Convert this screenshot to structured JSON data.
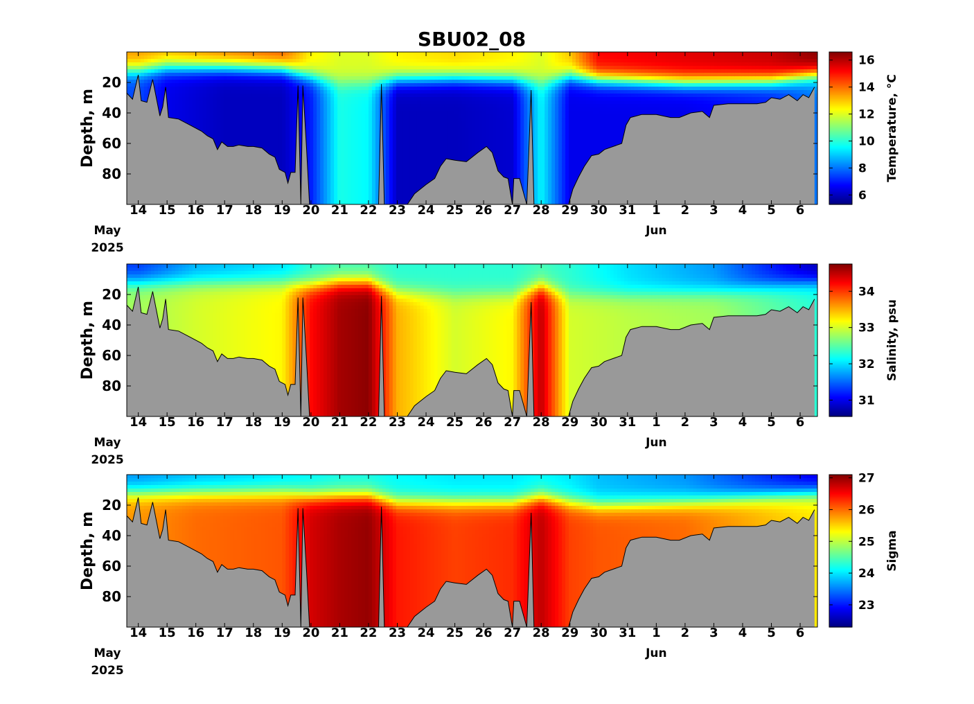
{
  "figure": {
    "title": "SBU02_08",
    "date_axis": {
      "day_ticks": [
        "14",
        "15",
        "16",
        "17",
        "18",
        "19",
        "20",
        "21",
        "22",
        "23",
        "24",
        "25",
        "26",
        "27",
        "28",
        "29",
        "30",
        "31",
        "1",
        "2",
        "3",
        "4",
        "5",
        "6"
      ],
      "month_labels": [
        {
          "month": "May",
          "year": "2025"
        },
        {
          "month": "Jun",
          "year": ""
        }
      ]
    },
    "depth_ticks": [
      "20",
      "40",
      "60",
      "80"
    ],
    "ylabel": "Depth, m"
  },
  "chart_data": [
    {
      "type": "heatmap",
      "variable": "temperature",
      "xlabel": "",
      "ylabel": "Depth, m",
      "x_range": [
        "2025-05-13T15:00",
        "2025-06-06T12:00"
      ],
      "ylim": [
        100,
        0
      ],
      "y_reversed": true,
      "colorbar": {
        "label": "Temperature, °C",
        "ticks": [
          6,
          8,
          10,
          12,
          14,
          16
        ],
        "range": [
          5.3,
          16.6
        ],
        "colormap": "jet"
      },
      "profiles": [
        {
          "day": 14,
          "surface": 13.5,
          "thermocline_depth": 12,
          "bottom": 7.5
        },
        {
          "day": 15,
          "surface": 13.2,
          "thermocline_depth": 10,
          "bottom": 6.5
        },
        {
          "day": 17,
          "surface": 13.8,
          "thermocline_depth": 10,
          "bottom": 6.0
        },
        {
          "day": 19,
          "surface": 14.2,
          "thermocline_depth": 11,
          "bottom": 6.0
        },
        {
          "day": 20,
          "surface": 12.5,
          "thermocline_depth": 16,
          "bottom": 7.0
        },
        {
          "day": 21,
          "surface": 12.0,
          "thermocline_depth": 20,
          "bottom": 9.8
        },
        {
          "day": 22,
          "surface": 12.0,
          "thermocline_depth": 20,
          "bottom": 9.5
        },
        {
          "day": 23,
          "surface": 12.5,
          "thermocline_depth": 18,
          "bottom": 6.0
        },
        {
          "day": 25,
          "surface": 12.8,
          "thermocline_depth": 17,
          "bottom": 6.0
        },
        {
          "day": 27,
          "surface": 12.5,
          "thermocline_depth": 18,
          "bottom": 6.2
        },
        {
          "day": 28,
          "surface": 12.0,
          "thermocline_depth": 20,
          "bottom": 9.5
        },
        {
          "day": 29,
          "surface": 13.0,
          "thermocline_depth": 16,
          "bottom": 6.5
        },
        {
          "day": 30,
          "surface": 15.2,
          "thermocline_depth": 18,
          "bottom": 6.5
        },
        {
          "day": 33,
          "surface": 15.5,
          "thermocline_depth": 20,
          "bottom": 6.5
        },
        {
          "day": 36,
          "surface": 15.8,
          "thermocline_depth": 19,
          "bottom": 7.0
        },
        {
          "day": 37.5,
          "surface": 16.5,
          "thermocline_depth": 15,
          "bottom": 8.0
        }
      ]
    },
    {
      "type": "heatmap",
      "variable": "salinity",
      "xlabel": "",
      "ylabel": "Depth, m",
      "x_range": [
        "2025-05-13T15:00",
        "2025-06-06T12:00"
      ],
      "ylim": [
        100,
        0
      ],
      "y_reversed": true,
      "colorbar": {
        "label": "Salinity, psu",
        "ticks": [
          31,
          32,
          33,
          34
        ],
        "range": [
          30.55,
          34.75
        ],
        "colormap": "jet"
      },
      "profiles": [
        {
          "day": 14,
          "surface": 31.3,
          "thermocline_depth": 12,
          "bottom": 32.8
        },
        {
          "day": 16,
          "surface": 31.8,
          "thermocline_depth": 12,
          "bottom": 33.0
        },
        {
          "day": 19,
          "surface": 32.0,
          "thermocline_depth": 12,
          "bottom": 33.2
        },
        {
          "day": 20,
          "surface": 32.3,
          "thermocline_depth": 14,
          "bottom": 34.2
        },
        {
          "day": 21,
          "surface": 32.4,
          "thermocline_depth": 12,
          "bottom": 34.6
        },
        {
          "day": 22,
          "surface": 32.4,
          "thermocline_depth": 12,
          "bottom": 34.7
        },
        {
          "day": 23,
          "surface": 32.3,
          "thermocline_depth": 18,
          "bottom": 33.5
        },
        {
          "day": 25,
          "surface": 32.3,
          "thermocline_depth": 20,
          "bottom": 33.0
        },
        {
          "day": 27,
          "surface": 32.3,
          "thermocline_depth": 20,
          "bottom": 33.2
        },
        {
          "day": 28,
          "surface": 32.4,
          "thermocline_depth": 15,
          "bottom": 34.5
        },
        {
          "day": 29,
          "surface": 32.3,
          "thermocline_depth": 20,
          "bottom": 33.0
        },
        {
          "day": 31,
          "surface": 32.0,
          "thermocline_depth": 20,
          "bottom": 32.9
        },
        {
          "day": 34,
          "surface": 31.7,
          "thermocline_depth": 18,
          "bottom": 32.8
        },
        {
          "day": 37.5,
          "surface": 30.8,
          "thermocline_depth": 12,
          "bottom": 32.3
        }
      ]
    },
    {
      "type": "heatmap",
      "variable": "sigma",
      "xlabel": "",
      "ylabel": "Depth, m",
      "x_range": [
        "2025-05-13T15:00",
        "2025-06-06T12:00"
      ],
      "ylim": [
        100,
        0
      ],
      "y_reversed": true,
      "colorbar": {
        "label": "Sigma",
        "ticks": [
          23,
          24,
          25,
          26,
          27
        ],
        "range": [
          22.3,
          27.1
        ],
        "colormap": "jet"
      },
      "profiles": [
        {
          "day": 14,
          "surface": 23.6,
          "thermocline_depth": 12,
          "bottom": 25.8
        },
        {
          "day": 16,
          "surface": 23.8,
          "thermocline_depth": 12,
          "bottom": 26.0
        },
        {
          "day": 19,
          "surface": 24.0,
          "thermocline_depth": 12,
          "bottom": 26.1
        },
        {
          "day": 20,
          "surface": 24.1,
          "thermocline_depth": 14,
          "bottom": 26.7
        },
        {
          "day": 21,
          "surface": 24.2,
          "thermocline_depth": 14,
          "bottom": 26.9
        },
        {
          "day": 22,
          "surface": 24.2,
          "thermocline_depth": 14,
          "bottom": 27.0
        },
        {
          "day": 23,
          "surface": 24.1,
          "thermocline_depth": 18,
          "bottom": 26.4
        },
        {
          "day": 25,
          "surface": 24.0,
          "thermocline_depth": 18,
          "bottom": 26.2
        },
        {
          "day": 27,
          "surface": 24.0,
          "thermocline_depth": 18,
          "bottom": 26.3
        },
        {
          "day": 28,
          "surface": 24.1,
          "thermocline_depth": 15,
          "bottom": 26.8
        },
        {
          "day": 29,
          "surface": 24.0,
          "thermocline_depth": 18,
          "bottom": 26.2
        },
        {
          "day": 30,
          "surface": 23.8,
          "thermocline_depth": 20,
          "bottom": 26.1
        },
        {
          "day": 33,
          "surface": 23.6,
          "thermocline_depth": 18,
          "bottom": 26.0
        },
        {
          "day": 37.5,
          "surface": 22.8,
          "thermocline_depth": 12,
          "bottom": 25.4
        }
      ]
    }
  ],
  "seafloor": {
    "fill_color": "#999999",
    "line_color": "#000000",
    "depth_profile": [
      {
        "day": 13.6,
        "depth": 27
      },
      {
        "day": 13.8,
        "depth": 31
      },
      {
        "day": 14.0,
        "depth": 15
      },
      {
        "day": 14.1,
        "depth": 32
      },
      {
        "day": 14.3,
        "depth": 33
      },
      {
        "day": 14.5,
        "depth": 18
      },
      {
        "day": 14.75,
        "depth": 42
      },
      {
        "day": 14.85,
        "depth": 36
      },
      {
        "day": 14.95,
        "depth": 23
      },
      {
        "day": 15.05,
        "depth": 43
      },
      {
        "day": 15.4,
        "depth": 44
      },
      {
        "day": 15.8,
        "depth": 48
      },
      {
        "day": 16.2,
        "depth": 52
      },
      {
        "day": 16.4,
        "depth": 55
      },
      {
        "day": 16.6,
        "depth": 57
      },
      {
        "day": 16.75,
        "depth": 64
      },
      {
        "day": 16.9,
        "depth": 59
      },
      {
        "day": 17.1,
        "depth": 62
      },
      {
        "day": 17.3,
        "depth": 62
      },
      {
        "day": 17.5,
        "depth": 61
      },
      {
        "day": 17.8,
        "depth": 62
      },
      {
        "day": 18.0,
        "depth": 62
      },
      {
        "day": 18.3,
        "depth": 63
      },
      {
        "day": 18.55,
        "depth": 67
      },
      {
        "day": 18.75,
        "depth": 69
      },
      {
        "day": 18.9,
        "depth": 77
      },
      {
        "day": 19.1,
        "depth": 79
      },
      {
        "day": 19.2,
        "depth": 86
      },
      {
        "day": 19.3,
        "depth": 79
      },
      {
        "day": 19.45,
        "depth": 79
      },
      {
        "day": 19.55,
        "depth": 22
      },
      {
        "day": 19.65,
        "depth": 100
      },
      {
        "day": 19.72,
        "depth": 22
      },
      {
        "day": 19.85,
        "depth": 64
      },
      {
        "day": 19.95,
        "depth": 100
      },
      {
        "day": 22.35,
        "depth": 100
      },
      {
        "day": 22.45,
        "depth": 21
      },
      {
        "day": 22.55,
        "depth": 100
      },
      {
        "day": 23.35,
        "depth": 100
      },
      {
        "day": 23.6,
        "depth": 93
      },
      {
        "day": 24.0,
        "depth": 87
      },
      {
        "day": 24.3,
        "depth": 83
      },
      {
        "day": 24.5,
        "depth": 75
      },
      {
        "day": 24.7,
        "depth": 70
      },
      {
        "day": 25.0,
        "depth": 71
      },
      {
        "day": 25.4,
        "depth": 72
      },
      {
        "day": 25.8,
        "depth": 66
      },
      {
        "day": 26.1,
        "depth": 62
      },
      {
        "day": 26.3,
        "depth": 66
      },
      {
        "day": 26.5,
        "depth": 78
      },
      {
        "day": 26.7,
        "depth": 82
      },
      {
        "day": 26.85,
        "depth": 83
      },
      {
        "day": 27.0,
        "depth": 100
      },
      {
        "day": 27.05,
        "depth": 83
      },
      {
        "day": 27.25,
        "depth": 83
      },
      {
        "day": 27.5,
        "depth": 100
      },
      {
        "day": 27.65,
        "depth": 25
      },
      {
        "day": 27.75,
        "depth": 100
      },
      {
        "day": 28.95,
        "depth": 100
      },
      {
        "day": 29.1,
        "depth": 90
      },
      {
        "day": 29.3,
        "depth": 82
      },
      {
        "day": 29.5,
        "depth": 75
      },
      {
        "day": 29.75,
        "depth": 68
      },
      {
        "day": 30.0,
        "depth": 67
      },
      {
        "day": 30.2,
        "depth": 64
      },
      {
        "day": 30.5,
        "depth": 62
      },
      {
        "day": 30.8,
        "depth": 60
      },
      {
        "day": 30.95,
        "depth": 48
      },
      {
        "day": 31.1,
        "depth": 43
      },
      {
        "day": 31.5,
        "depth": 41
      },
      {
        "day": 32.0,
        "depth": 41
      },
      {
        "day": 32.5,
        "depth": 43
      },
      {
        "day": 32.8,
        "depth": 43
      },
      {
        "day": 33.2,
        "depth": 40
      },
      {
        "day": 33.6,
        "depth": 39
      },
      {
        "day": 33.85,
        "depth": 43
      },
      {
        "day": 34.0,
        "depth": 35
      },
      {
        "day": 34.5,
        "depth": 34
      },
      {
        "day": 35.0,
        "depth": 34
      },
      {
        "day": 35.5,
        "depth": 34
      },
      {
        "day": 35.8,
        "depth": 33
      },
      {
        "day": 36.0,
        "depth": 30
      },
      {
        "day": 36.3,
        "depth": 31
      },
      {
        "day": 36.6,
        "depth": 28
      },
      {
        "day": 36.9,
        "depth": 32
      },
      {
        "day": 37.1,
        "depth": 28
      },
      {
        "day": 37.3,
        "depth": 30
      },
      {
        "day": 37.5,
        "depth": 23
      }
    ]
  }
}
